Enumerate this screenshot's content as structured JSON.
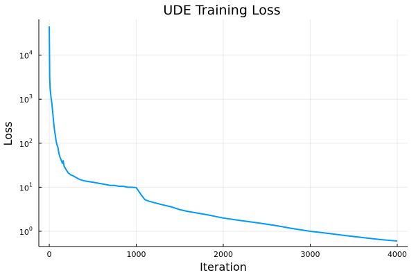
{
  "chart_data": {
    "type": "line",
    "title": "UDE Training Loss",
    "xlabel": "Iteration",
    "ylabel": "Loss",
    "xlim": [
      -120,
      4120
    ],
    "ylim": [
      0.45,
      65000
    ],
    "yscale": "log",
    "grid": true,
    "legend": "none",
    "xticks": [
      0,
      1000,
      2000,
      3000,
      4000
    ],
    "xtick_labels": [
      "0",
      "1000",
      "2000",
      "3000",
      "4000"
    ],
    "yticks": [
      1,
      10,
      100,
      1000,
      10000
    ],
    "ytick_labels": [
      {
        "base": "10",
        "exp": "0"
      },
      {
        "base": "10",
        "exp": "1"
      },
      {
        "base": "10",
        "exp": "2"
      },
      {
        "base": "10",
        "exp": "3"
      },
      {
        "base": "10",
        "exp": "4"
      }
    ],
    "series": [
      {
        "color": "#009af9",
        "x": [
          0,
          5,
          10,
          15,
          20,
          30,
          40,
          50,
          60,
          70,
          80,
          90,
          100,
          110,
          120,
          130,
          140,
          150,
          160,
          170,
          180,
          200,
          220,
          250,
          280,
          300,
          350,
          400,
          450,
          500,
          550,
          600,
          650,
          700,
          750,
          800,
          850,
          900,
          950,
          1000,
          1050,
          1100,
          1150,
          1200,
          1300,
          1400,
          1500,
          1600,
          1800,
          2000,
          2200,
          2400,
          2600,
          2800,
          3000,
          3200,
          3400,
          3600,
          3800,
          4000
        ],
        "y": [
          45000,
          3000,
          1800,
          1400,
          1100,
          800,
          500,
          300,
          200,
          150,
          110,
          90,
          80,
          60,
          50,
          45,
          40,
          35,
          40,
          30,
          28,
          24,
          21,
          19,
          18,
          17,
          15,
          14,
          13.5,
          13,
          12.5,
          12,
          11.5,
          11,
          11,
          10.5,
          10.5,
          10,
          10,
          9.8,
          7,
          5.2,
          4.8,
          4.5,
          4,
          3.6,
          3.1,
          2.8,
          2.4,
          2.0,
          1.75,
          1.55,
          1.35,
          1.15,
          1.0,
          0.9,
          0.8,
          0.72,
          0.65,
          0.6
        ]
      }
    ]
  }
}
